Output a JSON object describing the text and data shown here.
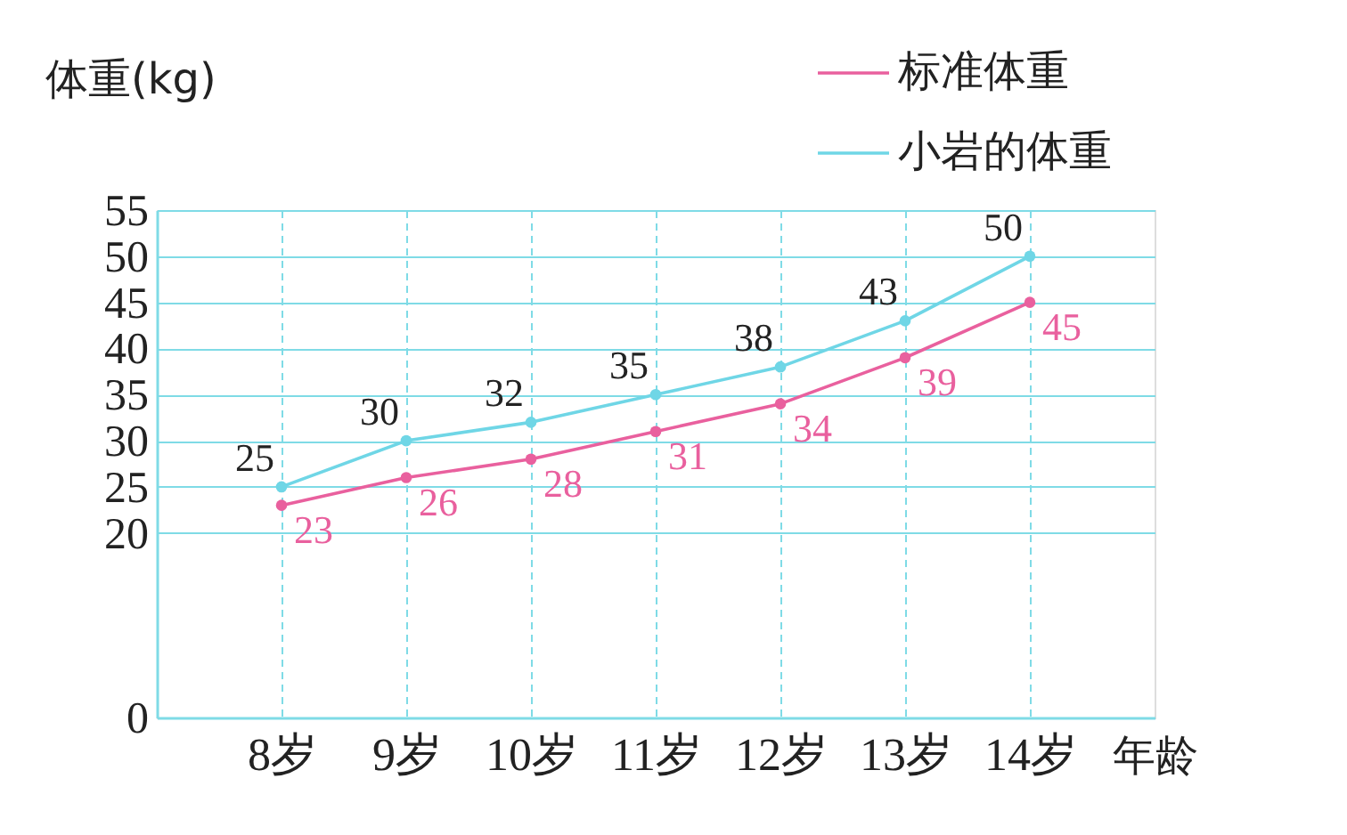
{
  "chart_data": {
    "type": "line",
    "categories": [
      "8岁",
      "9岁",
      "10岁",
      "11岁",
      "12岁",
      "13岁",
      "14岁"
    ],
    "xlabel": "年龄",
    "ylabel": "体重(kg)",
    "series": [
      {
        "name": "标准体重",
        "color": "#e9609e",
        "values": [
          23,
          26,
          28,
          31,
          34,
          39,
          45
        ]
      },
      {
        "name": "小岩的体重",
        "color": "#6fd6e6",
        "values": [
          25,
          30,
          32,
          35,
          38,
          43,
          50
        ]
      }
    ],
    "ylim": [
      0,
      55
    ],
    "yticks": [
      0,
      20,
      25,
      30,
      35,
      40,
      45,
      50,
      55
    ],
    "grid": true,
    "legend": "top right",
    "marker": "circle",
    "line_style": "solid",
    "data_labels": true
  }
}
